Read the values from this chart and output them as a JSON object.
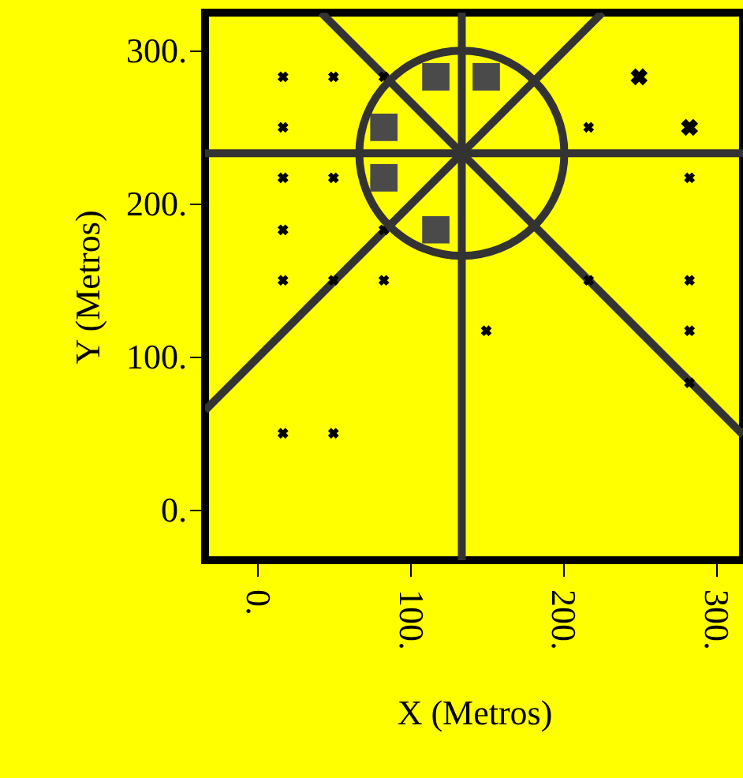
{
  "chart_data": {
    "type": "scatter",
    "xlabel": "X (Metros)",
    "ylabel": "Y (Metros)",
    "xlim": [
      -34,
      318
    ],
    "ylim": [
      -33,
      325
    ],
    "xticks": [
      {
        "value": 0,
        "label": "0."
      },
      {
        "value": 100,
        "label": "100."
      },
      {
        "value": 200,
        "label": "200."
      },
      {
        "value": 300,
        "label": "300."
      }
    ],
    "yticks": [
      {
        "value": 0,
        "label": "0."
      },
      {
        "value": 100,
        "label": "100."
      },
      {
        "value": 200,
        "label": "200."
      },
      {
        "value": 300,
        "label": "300."
      }
    ],
    "series": [
      {
        "marker": "cross",
        "color": "#000000",
        "x": [
          17,
          50,
          83,
          17,
          217,
          17,
          50,
          283,
          17,
          83,
          17,
          50,
          83,
          217,
          283,
          150,
          283,
          283,
          17,
          50
        ],
        "values": [
          283,
          283,
          283,
          250,
          250,
          217,
          217,
          217,
          183,
          183,
          150,
          150,
          150,
          150,
          150,
          117,
          117,
          83,
          50,
          50
        ]
      },
      {
        "marker": "cross",
        "color": "#000000",
        "x": [
          250,
          283
        ],
        "values": [
          283,
          250
        ]
      },
      {
        "marker": "square",
        "color": "#4a4a4a",
        "x": [
          117,
          150,
          83,
          83,
          117
        ],
        "values": [
          283,
          283,
          250,
          217,
          183
        ]
      },
      {
        "type": "line",
        "color": "#333333",
        "x": [
          134,
          134
        ],
        "values": [
          -33,
          325
        ]
      },
      {
        "type": "line",
        "color": "#333333",
        "x": [
          -34,
          318
        ],
        "values": [
          233,
          233
        ]
      },
      {
        "type": "line",
        "color": "#333333",
        "x": [
          -34,
          226
        ],
        "values": [
          65,
          325
        ]
      },
      {
        "type": "line",
        "color": "#333333",
        "x": [
          42,
          318
        ],
        "values": [
          325,
          49
        ]
      }
    ]
  }
}
